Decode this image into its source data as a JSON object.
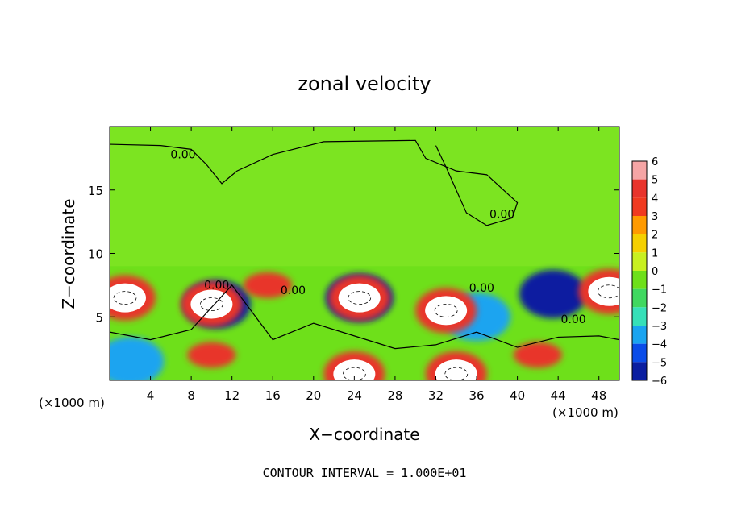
{
  "chart_data": {
    "type": "heatmap",
    "title": "zonal velocity",
    "xlabel": "X−coordinate",
    "ylabel": "Z−coordinate",
    "x_unit_left": "(×1000 m)",
    "x_unit_right": "(×1000 m)",
    "footer": "CONTOUR INTERVAL =  1.000E+01",
    "xlim": [
      0,
      50
    ],
    "ylim": [
      0,
      20
    ],
    "x_ticks": [
      4,
      8,
      12,
      16,
      20,
      24,
      28,
      32,
      36,
      40,
      44,
      48
    ],
    "y_ticks": [
      5,
      10,
      15
    ],
    "x_tick_labels": [
      "4",
      "8",
      "12",
      "16",
      "20",
      "24",
      "28",
      "32",
      "36",
      "40",
      "44",
      "48"
    ],
    "y_tick_labels": [
      "5",
      "10",
      "15"
    ],
    "contour_labels": [
      {
        "text": "0.00",
        "x": 7.2,
        "y": 17.5
      },
      {
        "text": "0.00",
        "x": 38.5,
        "y": 12.8
      },
      {
        "text": "0.00",
        "x": 10.5,
        "y": 7.2
      },
      {
        "text": "0.00",
        "x": 18.0,
        "y": 6.8
      },
      {
        "text": "0.00",
        "x": 36.5,
        "y": 7.0
      },
      {
        "text": "0.00",
        "x": 45.5,
        "y": 4.5
      }
    ],
    "colorbar": {
      "levels": [
        "6",
        "5",
        "4",
        "3",
        "2",
        "1",
        "0",
        "−1",
        "−2",
        "−3",
        "−4",
        "−5",
        "−6"
      ],
      "colors": [
        "#f5a5a5",
        "#e8342c",
        "#f03a20",
        "#ff9a00",
        "#f5d000",
        "#c8f020",
        "#6ee01a",
        "#40d860",
        "#36e0b8",
        "#1aa4f0",
        "#0a4ce8",
        "#0a1ea0",
        "#6a0aa8"
      ]
    },
    "field": {
      "background_value": 0,
      "positive_cells": [
        {
          "x": 1.5,
          "y": 6.5,
          "value": 6,
          "label": "white core"
        },
        {
          "x": 10.0,
          "y": 6.0,
          "value": 6,
          "label": "white core"
        },
        {
          "x": 24.5,
          "y": 6.5,
          "value": 6,
          "label": "white core"
        },
        {
          "x": 33.0,
          "y": 5.5,
          "value": 6,
          "label": "white core"
        },
        {
          "x": 49.0,
          "y": 7.0,
          "value": 6,
          "label": "white core"
        },
        {
          "x": 24.0,
          "y": 0.5,
          "value": 6,
          "label": "white core"
        },
        {
          "x": 34.0,
          "y": 0.5,
          "value": 6,
          "label": "white core"
        },
        {
          "x": 10.0,
          "y": 2.0,
          "value": 5,
          "label": "red"
        },
        {
          "x": 15.5,
          "y": 7.5,
          "value": 5,
          "label": "red"
        },
        {
          "x": 42.0,
          "y": 2.0,
          "value": 5,
          "label": "red"
        }
      ],
      "negative_cells": [
        {
          "x": 10.5,
          "y": 6.0,
          "value": -5,
          "label": "blue ring"
        },
        {
          "x": 24.5,
          "y": 6.5,
          "value": -5,
          "label": "blue ring"
        },
        {
          "x": 43.5,
          "y": 6.8,
          "value": -5,
          "label": "blue"
        },
        {
          "x": 2.0,
          "y": 1.5,
          "value": -3,
          "label": "blue"
        },
        {
          "x": 36.0,
          "y": 5.0,
          "value": -3,
          "label": "blue"
        }
      ]
    }
  }
}
